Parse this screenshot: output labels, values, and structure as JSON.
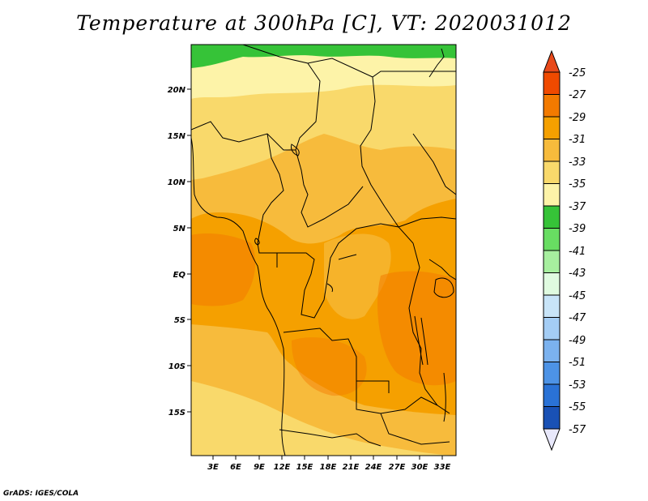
{
  "title": "Temperature at 300hPa [C], VT: 2020031012",
  "credit": "GrADS: IGES/COLA",
  "lat_labels": [
    "20N",
    "15N",
    "10N",
    "5N",
    "EQ",
    "5S",
    "10S",
    "15S"
  ],
  "lon_labels": [
    "3E",
    "6E",
    "9E",
    "12E",
    "15E",
    "18E",
    "21E",
    "24E",
    "27E",
    "30E",
    "33E"
  ],
  "colorbar": {
    "labels": [
      "-25",
      "-27",
      "-29",
      "-31",
      "-33",
      "-35",
      "-37",
      "-39",
      "-41",
      "-43",
      "-45",
      "-47",
      "-49",
      "-51",
      "-53",
      "-55",
      "-57"
    ],
    "colors": [
      "#f04a00",
      "#f37a00",
      "#f5a000",
      "#f7bb3c",
      "#f9d96b",
      "#fdf3a8",
      "#36c338",
      "#68dd62",
      "#a7ef9f",
      "#e0fbe0",
      "#c8e4f8",
      "#a4cdf5",
      "#7bb2ef",
      "#4d93e6",
      "#2a72d6",
      "#1951b5",
      "#0f2d96"
    ],
    "top_color": "#e8491a",
    "bottom_color": "#e8e8fb"
  }
}
